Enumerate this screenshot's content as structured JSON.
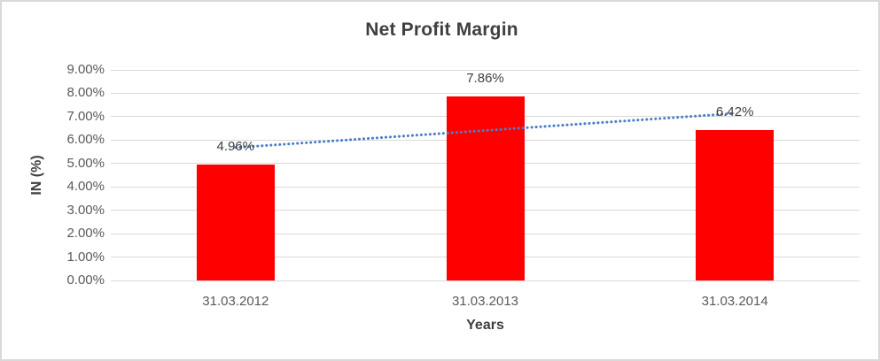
{
  "chart_data": {
    "type": "bar",
    "title": "Net Profit Margin",
    "xlabel": "Years",
    "ylabel": "IN (%)",
    "categories": [
      "31.03.2012",
      "31.03.2013",
      "31.03.2014"
    ],
    "values": [
      4.96,
      7.86,
      6.42
    ],
    "data_labels": [
      "4.96%",
      "7.86%",
      "6.42%"
    ],
    "ylim": [
      0,
      9
    ],
    "ytick_step": 1,
    "ytick_labels": [
      "0.00%",
      "1.00%",
      "2.00%",
      "3.00%",
      "4.00%",
      "5.00%",
      "6.00%",
      "7.00%",
      "8.00%",
      "9.00%"
    ],
    "grid": true,
    "legend": "none",
    "bar_color": "#FF0000",
    "gridline_color": "#D9D9D9",
    "trendline": {
      "type": "linear",
      "style": "dotted",
      "color": "#4A7EC7",
      "start_value": 5.68,
      "end_value": 7.14
    },
    "colors": {
      "title_text": "#3F3F3F",
      "tick_text": "#595959",
      "data_label_text": "#404040",
      "frame_border": "#D9D9D9",
      "background": "#FFFFFF"
    }
  }
}
